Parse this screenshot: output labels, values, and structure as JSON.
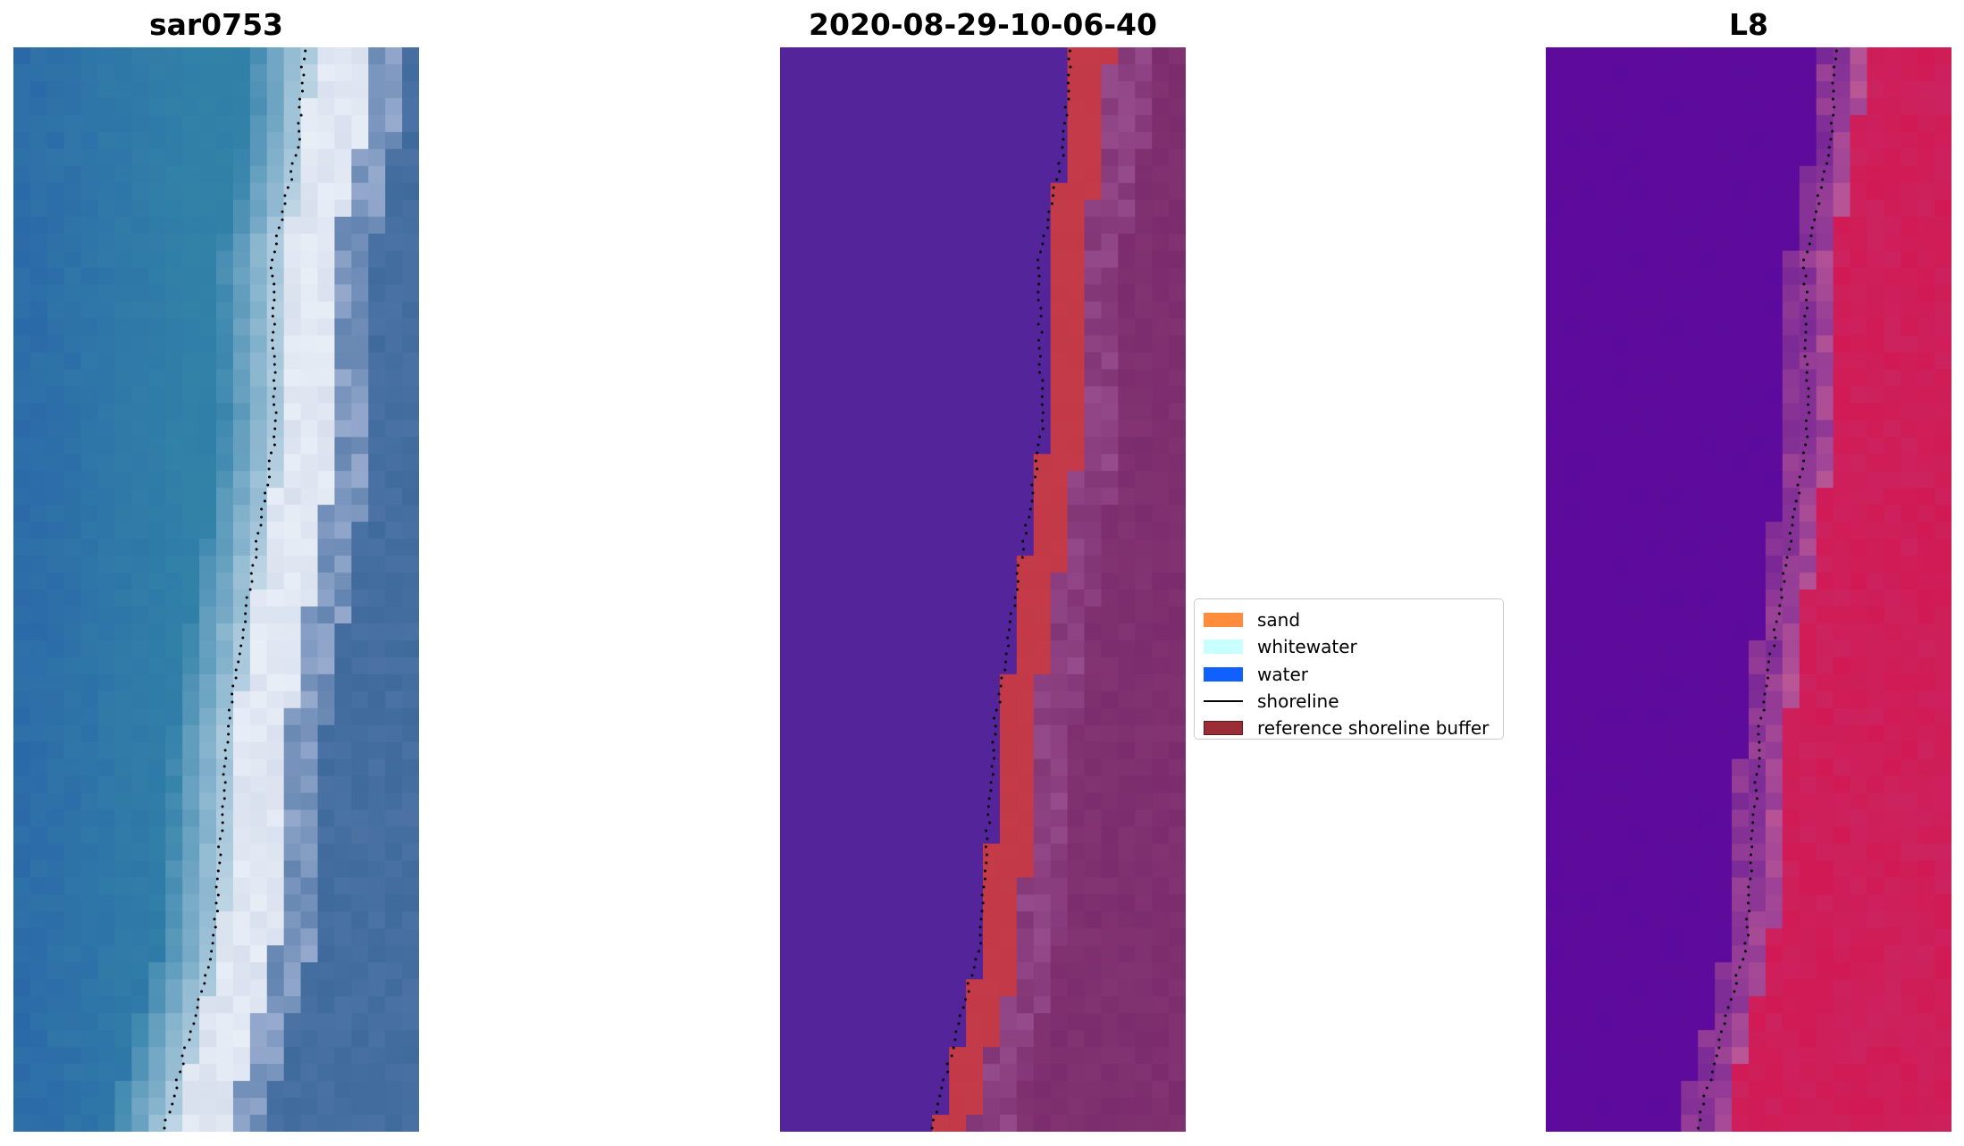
{
  "panels": [
    {
      "title": "sar0753",
      "kind": "rgb"
    },
    {
      "title": "2020-08-29-10-06-40",
      "kind": "classification"
    },
    {
      "title": "L8",
      "kind": "mndwi"
    }
  ],
  "legend": {
    "items": [
      {
        "label": "sand",
        "color": "#ff8c3c",
        "type": "patch"
      },
      {
        "label": "whitewater",
        "color": "#c8ffff",
        "type": "patch"
      },
      {
        "label": "water",
        "color": "#1060ff",
        "type": "patch"
      },
      {
        "label": "shoreline",
        "color": "#000000",
        "type": "line"
      },
      {
        "label": "reference shoreline buffer",
        "color": "#9b2d36",
        "type": "patch"
      }
    ]
  },
  "colors": {
    "rgb_water": "#2f7fa8",
    "rgb_surf": "#e8eef6",
    "rgb_land": "#3f6a9c",
    "class_water": "#54249a",
    "class_sand": "#c43a48",
    "class_land": "#7a2c6c",
    "mndwi_water": "#5e0b9c",
    "mndwi_land": "#d11a55"
  }
}
